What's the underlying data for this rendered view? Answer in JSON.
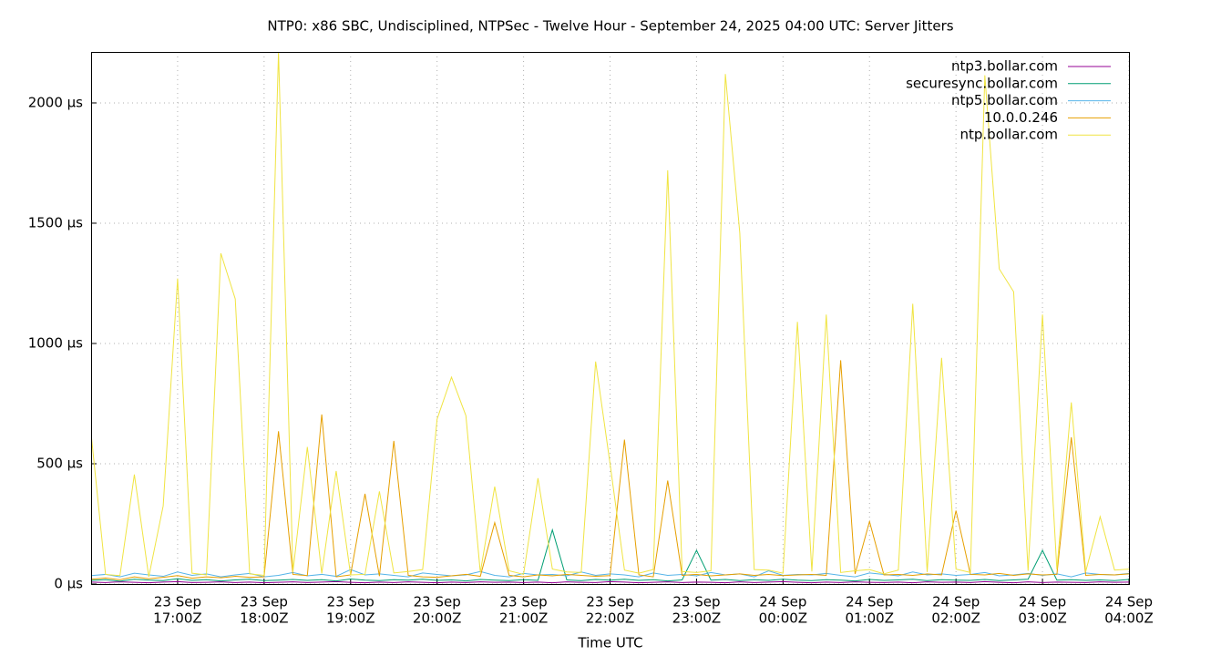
{
  "chart_data": {
    "type": "line",
    "title": "NTP0: x86 SBC, Undisciplined, NTPSec - Twelve Hour - September 24, 2025 04:00 UTC: Server Jitters",
    "xlabel": "Time UTC",
    "grid": true,
    "legend": "top-right",
    "xlim": [
      "23 Sep 16:00Z",
      "24 Sep 04:00Z"
    ],
    "ylim": [
      0,
      2212
    ],
    "yticks": [
      {
        "value": 0,
        "label": "0 µs"
      },
      {
        "value": 500,
        "label": "500 µs"
      },
      {
        "value": 1000,
        "label": "1000 µs"
      },
      {
        "value": 1500,
        "label": "1500 µs"
      },
      {
        "value": 2000,
        "label": "2000 µs"
      }
    ],
    "xticks": [
      {
        "value": "23 Sep 17:00Z",
        "label": [
          "23 Sep",
          "17:00Z"
        ]
      },
      {
        "value": "23 Sep 18:00Z",
        "label": [
          "23 Sep",
          "18:00Z"
        ]
      },
      {
        "value": "23 Sep 19:00Z",
        "label": [
          "23 Sep",
          "19:00Z"
        ]
      },
      {
        "value": "23 Sep 20:00Z",
        "label": [
          "23 Sep",
          "20:00Z"
        ]
      },
      {
        "value": "23 Sep 21:00Z",
        "label": [
          "23 Sep",
          "21:00Z"
        ]
      },
      {
        "value": "23 Sep 22:00Z",
        "label": [
          "23 Sep",
          "22:00Z"
        ]
      },
      {
        "value": "23 Sep 23:00Z",
        "label": [
          "23 Sep",
          "23:00Z"
        ]
      },
      {
        "value": "24 Sep 00:00Z",
        "label": [
          "24 Sep",
          "00:00Z"
        ]
      },
      {
        "value": "24 Sep 01:00Z",
        "label": [
          "24 Sep",
          "01:00Z"
        ]
      },
      {
        "value": "24 Sep 02:00Z",
        "label": [
          "24 Sep",
          "02:00Z"
        ]
      },
      {
        "value": "24 Sep 03:00Z",
        "label": [
          "24 Sep",
          "03:00Z"
        ]
      },
      {
        "value": "24 Sep 04:00Z",
        "label": [
          "24 Sep",
          "04:00Z"
        ]
      }
    ],
    "x": [
      "23 Sep 16:00Z",
      "23 Sep 16:10Z",
      "23 Sep 16:20Z",
      "23 Sep 16:30Z",
      "23 Sep 16:40Z",
      "23 Sep 16:50Z",
      "23 Sep 17:00Z",
      "23 Sep 17:10Z",
      "23 Sep 17:20Z",
      "23 Sep 17:30Z",
      "23 Sep 17:40Z",
      "23 Sep 17:50Z",
      "23 Sep 18:00Z",
      "23 Sep 18:10Z",
      "23 Sep 18:20Z",
      "23 Sep 18:30Z",
      "23 Sep 18:40Z",
      "23 Sep 18:50Z",
      "23 Sep 19:00Z",
      "23 Sep 19:10Z",
      "23 Sep 19:20Z",
      "23 Sep 19:30Z",
      "23 Sep 19:40Z",
      "23 Sep 19:50Z",
      "23 Sep 20:00Z",
      "23 Sep 20:10Z",
      "23 Sep 20:20Z",
      "23 Sep 20:30Z",
      "23 Sep 20:40Z",
      "23 Sep 20:50Z",
      "23 Sep 21:00Z",
      "23 Sep 21:10Z",
      "23 Sep 21:20Z",
      "23 Sep 21:30Z",
      "23 Sep 21:40Z",
      "23 Sep 21:50Z",
      "23 Sep 22:00Z",
      "23 Sep 22:10Z",
      "23 Sep 22:20Z",
      "23 Sep 22:30Z",
      "23 Sep 22:40Z",
      "23 Sep 22:50Z",
      "23 Sep 23:00Z",
      "23 Sep 23:10Z",
      "23 Sep 23:20Z",
      "23 Sep 23:30Z",
      "23 Sep 23:40Z",
      "23 Sep 23:50Z",
      "24 Sep 00:00Z",
      "24 Sep 00:10Z",
      "24 Sep 00:20Z",
      "24 Sep 00:30Z",
      "24 Sep 00:40Z",
      "24 Sep 00:50Z",
      "24 Sep 01:00Z",
      "24 Sep 01:10Z",
      "24 Sep 01:20Z",
      "24 Sep 01:30Z",
      "24 Sep 01:40Z",
      "24 Sep 01:50Z",
      "24 Sep 02:00Z",
      "24 Sep 02:10Z",
      "24 Sep 02:20Z",
      "24 Sep 02:30Z",
      "24 Sep 02:40Z",
      "24 Sep 02:50Z",
      "24 Sep 03:00Z",
      "24 Sep 03:10Z",
      "24 Sep 03:20Z",
      "24 Sep 03:30Z",
      "24 Sep 03:40Z",
      "24 Sep 03:50Z",
      "24 Sep 04:00Z"
    ],
    "series": [
      {
        "name": "ntp3.bollar.com",
        "color": "#940094",
        "values": [
          8,
          6,
          9,
          7,
          5,
          8,
          10,
          6,
          7,
          9,
          6,
          8,
          5,
          7,
          9,
          6,
          8,
          10,
          7,
          5,
          8,
          6,
          9,
          7,
          5,
          8,
          6,
          9,
          7,
          8,
          6,
          8,
          5,
          9,
          7,
          6,
          10,
          8,
          5,
          7,
          9,
          6,
          8,
          7,
          5,
          9,
          6,
          8,
          10,
          7,
          5,
          8,
          6,
          9,
          7,
          6,
          8,
          5,
          9,
          7,
          8,
          6,
          10,
          7,
          5,
          9,
          6,
          8,
          7,
          6,
          9,
          7,
          8
        ]
      },
      {
        "name": "securesync.bollar.com",
        "color": "#009e73",
        "values": [
          15,
          18,
          12,
          20,
          16,
          14,
          22,
          15,
          18,
          13,
          17,
          20,
          14,
          16,
          19,
          15,
          18,
          13,
          21,
          16,
          14,
          18,
          16,
          20,
          15,
          17,
          13,
          19,
          16,
          14,
          18,
          15,
          225,
          17,
          14,
          19,
          16,
          20,
          15,
          18,
          13,
          17,
          140,
          16,
          19,
          14,
          18,
          15,
          20,
          16,
          14,
          18,
          16,
          13,
          19,
          15,
          17,
          20,
          14,
          18,
          16,
          15,
          19,
          14,
          17,
          20,
          140,
          16,
          18,
          15,
          17,
          14,
          19
        ]
      },
      {
        "name": "ntp5.bollar.com",
        "color": "#56b4e9",
        "values": [
          35,
          40,
          30,
          45,
          38,
          32,
          50,
          36,
          42,
          30,
          38,
          44,
          30,
          36,
          48,
          34,
          40,
          32,
          60,
          38,
          42,
          36,
          30,
          46,
          40,
          34,
          38,
          52,
          36,
          30,
          44,
          38,
          40,
          34,
          50,
          36,
          42,
          38,
          30,
          46,
          36,
          40,
          34,
          48,
          38,
          42,
          30,
          55,
          36,
          40,
          38,
          44,
          36,
          30,
          46,
          40,
          34,
          50,
          38,
          42,
          36,
          40,
          48,
          34,
          38,
          44,
          36,
          42,
          30,
          46,
          40,
          38,
          44
        ]
      },
      {
        "name": "10.0.0.246",
        "color": "#e69f00",
        "values": [
          20,
          25,
          18,
          30,
          22,
          28,
          35,
          24,
          30,
          26,
          32,
          28,
          30,
          635,
          40,
          35,
          705,
          30,
          38,
          375,
          33,
          595,
          36,
          30,
          28,
          34,
          40,
          32,
          255,
          36,
          30,
          38,
          34,
          40,
          36,
          32,
          35,
          600,
          38,
          30,
          430,
          36,
          40,
          34,
          38,
          42,
          36,
          40,
          35,
          38,
          40,
          36,
          930,
          42,
          260,
          38,
          40,
          36,
          42,
          38,
          305,
          40,
          38,
          44,
          36,
          42,
          38,
          40,
          610,
          36,
          40,
          38,
          42
        ]
      },
      {
        "name": "ntp.bollar.com",
        "color": "#f0e442",
        "values": [
          625,
          40,
          35,
          455,
          30,
          325,
          1270,
          45,
          38,
          1375,
          1185,
          42,
          36,
          2212,
          50,
          570,
          44,
          470,
          38,
          40,
          385,
          46,
          52,
          60,
          685,
          860,
          700,
          48,
          405,
          55,
          40,
          440,
          62,
          50,
          48,
          925,
          500,
          58,
          45,
          60,
          1720,
          52,
          48,
          55,
          2120,
          1460,
          60,
          58,
          45,
          1090,
          52,
          1120,
          48,
          55,
          60,
          42,
          58,
          1165,
          50,
          940,
          62,
          48,
          2115,
          1310,
          1215,
          55,
          1120,
          60,
          755,
          52,
          280,
          58,
          62
        ]
      }
    ]
  }
}
